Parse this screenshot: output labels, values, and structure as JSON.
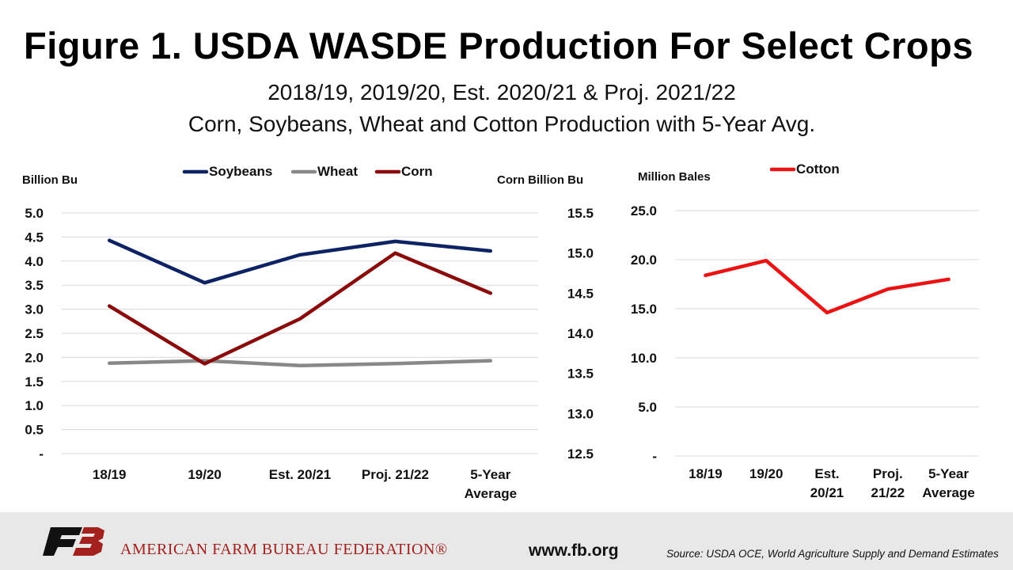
{
  "title": "Figure 1. USDA WASDE Production For Select Crops",
  "subtitle_line1": "2018/19, 2019/20, Est. 2020/21 & Proj. 2021/22",
  "subtitle_line2": "Corn, Soybeans, Wheat and Cotton Production with 5-Year Avg.",
  "footer": {
    "org_name": "AMERICAN FARM BUREAU FEDERATION®",
    "website": "www.fb.org",
    "source": "Source: USDA OCE, World Agriculture Supply and Demand Estimates"
  },
  "chart_data": [
    {
      "type": "line",
      "categories": [
        "18/19",
        "19/20",
        "Est. 20/21",
        "Proj. 21/22",
        "5-Year Average"
      ],
      "category_lines": [
        [
          "18/19"
        ],
        [
          "19/20"
        ],
        [
          "Est. 20/21"
        ],
        [
          "Proj. 21/22"
        ],
        [
          "5-Year",
          "Average"
        ]
      ],
      "ylabel": "Billion Bu",
      "ylabel_right": "Corn Billion Bu",
      "ylim": [
        0,
        5
      ],
      "ylim_right": [
        12.5,
        15.5
      ],
      "yticks": [
        "-",
        "0.5",
        "1.0",
        "1.5",
        "2.0",
        "2.5",
        "3.0",
        "3.5",
        "4.0",
        "4.5",
        "5.0"
      ],
      "yticks_right": [
        "12.5",
        "13.0",
        "13.5",
        "14.0",
        "14.5",
        "15.0",
        "15.5"
      ],
      "grid": true,
      "legend_position": "top",
      "series": [
        {
          "name": "Soybeans",
          "axis": "left",
          "color": "#0d2366",
          "values": [
            4.43,
            3.55,
            4.13,
            4.41,
            4.21
          ]
        },
        {
          "name": "Wheat",
          "axis": "left",
          "color": "#888888",
          "values": [
            1.88,
            1.93,
            1.83,
            1.87,
            1.93
          ]
        },
        {
          "name": "Corn",
          "axis": "right",
          "color": "#8b0a0a",
          "values": [
            14.34,
            13.62,
            14.18,
            15.0,
            14.5
          ]
        }
      ]
    },
    {
      "type": "line",
      "categories": [
        "18/19",
        "19/20",
        "Est. 20/21",
        "Proj. 21/22",
        "5-Year Average"
      ],
      "category_lines": [
        [
          "18/19"
        ],
        [
          "19/20"
        ],
        [
          "Est.",
          "20/21"
        ],
        [
          "Proj.",
          "21/22"
        ],
        [
          "5-Year",
          "Average"
        ]
      ],
      "ylabel": "Million Bales",
      "ylim": [
        0,
        25
      ],
      "yticks": [
        "-",
        "5.0",
        "10.0",
        "15.0",
        "20.0",
        "25.0"
      ],
      "grid": true,
      "legend_position": "top",
      "series": [
        {
          "name": "Cotton",
          "axis": "left",
          "color": "#ee1111",
          "values": [
            18.4,
            19.9,
            14.6,
            17.0,
            18.0
          ]
        }
      ]
    }
  ]
}
